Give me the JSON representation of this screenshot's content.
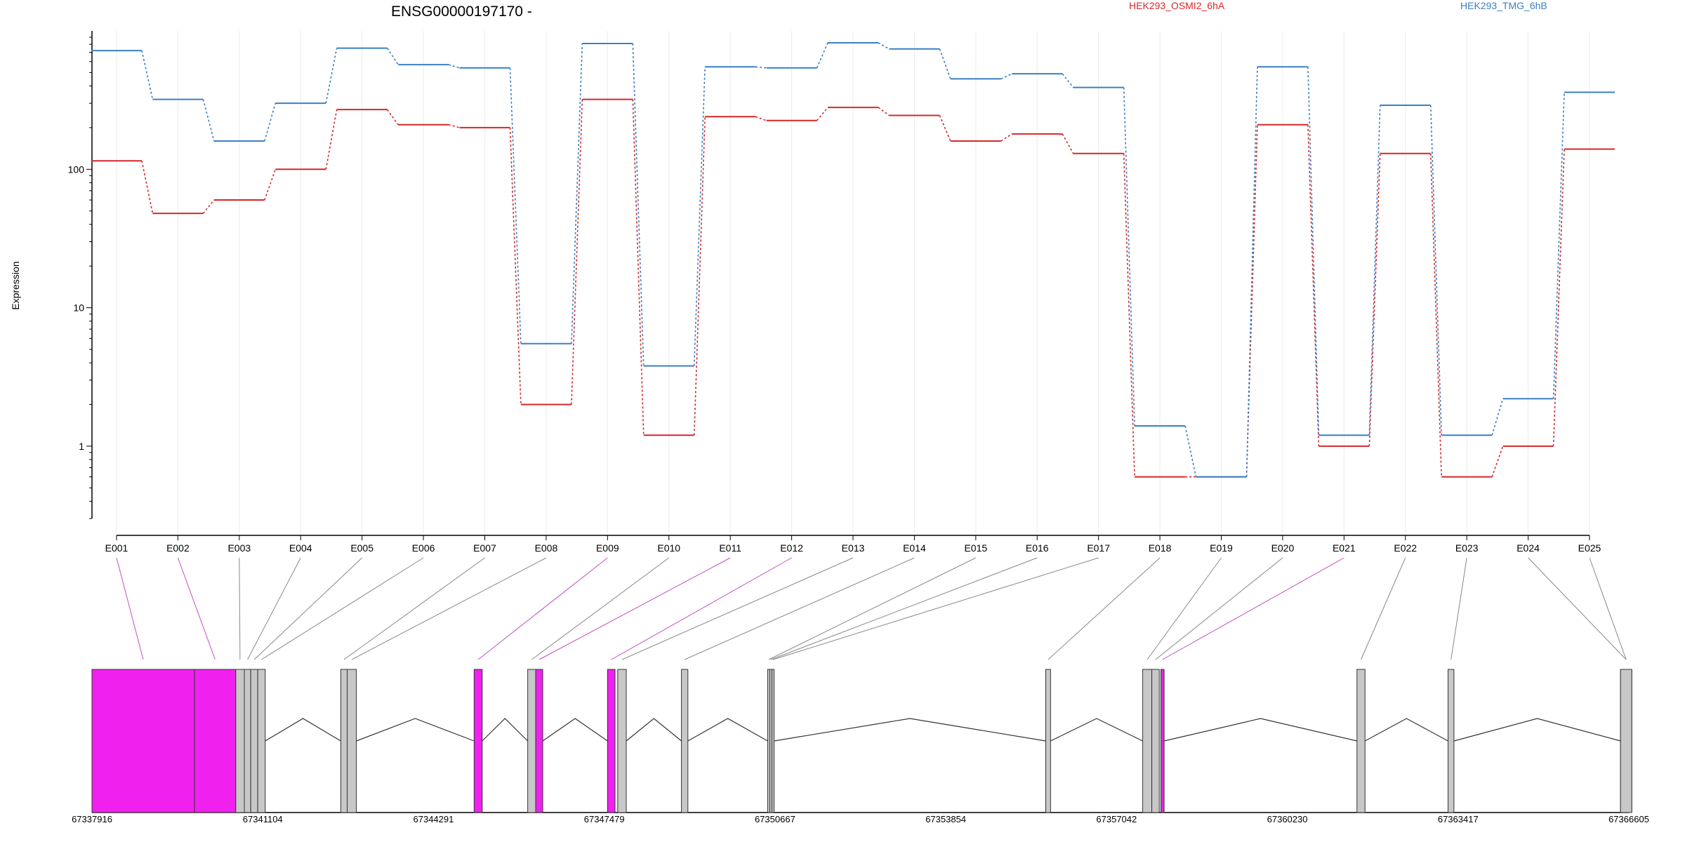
{
  "chart_data": {
    "type": "line",
    "title": "ENSG00000197170 -",
    "ylabel": "Expression",
    "xlabel": "",
    "yscale": "log",
    "ylim": [
      0.3,
      1000
    ],
    "yticks": [
      1,
      10,
      100
    ],
    "ytick_labels": [
      "1",
      "10",
      "100"
    ],
    "grid": "vertical",
    "legend_position": "top",
    "categories": [
      "E001",
      "E002",
      "E003",
      "E004",
      "E005",
      "E006",
      "E007",
      "E008",
      "E009",
      "E010",
      "E011",
      "E012",
      "E013",
      "E014",
      "E015",
      "E016",
      "E017",
      "E018",
      "E019",
      "E020",
      "E021",
      "E022",
      "E023",
      "E024",
      "E025"
    ],
    "series": [
      {
        "name": "HEK293_OSMI2_6hA",
        "color": "#d62728",
        "values": [
          115,
          48,
          60,
          100,
          270,
          210,
          200,
          2.0,
          320,
          1.2,
          240,
          225,
          280,
          245,
          160,
          180,
          130,
          0.6,
          0.6,
          210,
          1.0,
          130,
          0.6,
          1.0,
          140
        ]
      },
      {
        "name": "HEK293_TMG_6hB",
        "color": "#3b7fc4",
        "values": [
          720,
          320,
          160,
          300,
          750,
          570,
          540,
          5.5,
          810,
          3.8,
          550,
          540,
          820,
          740,
          450,
          490,
          390,
          1.4,
          0.6,
          550,
          1.2,
          290,
          1.2,
          2.2,
          360
        ]
      }
    ],
    "gene_model": {
      "coordinates": [
        "67337916",
        "67341104",
        "67344291",
        "67347479",
        "67350667",
        "67353854",
        "67357042",
        "67360230",
        "67363417",
        "67366605"
      ],
      "range": [
        67337916,
        67366605
      ],
      "highlight_color": "#f020ef",
      "base_color": "#c8c8c8",
      "exons": [
        {
          "id": "E001",
          "start": 67337916,
          "end": 67339830,
          "highlight": true
        },
        {
          "id": "E002",
          "start": 67339830,
          "end": 67340600,
          "highlight": true
        },
        {
          "id": "E003",
          "start": 67340600,
          "end": 67340760,
          "highlight": false
        },
        {
          "id": "E004",
          "start": 67340760,
          "end": 67340880,
          "highlight": false
        },
        {
          "id": "E005",
          "start": 67340880,
          "end": 67341010,
          "highlight": false
        },
        {
          "id": "E006",
          "start": 67341010,
          "end": 67341150,
          "highlight": false
        },
        {
          "id": "E007",
          "start": 67342560,
          "end": 67342680,
          "highlight": false
        },
        {
          "id": "E008",
          "start": 67342680,
          "end": 67342850,
          "highlight": false
        },
        {
          "id": "E009",
          "start": 67345050,
          "end": 67345200,
          "highlight": true
        },
        {
          "id": "E010",
          "start": 67346050,
          "end": 67346200,
          "highlight": false
        },
        {
          "id": "E011",
          "start": 67346200,
          "end": 67346330,
          "highlight": true
        },
        {
          "id": "E012",
          "start": 67347540,
          "end": 67347680,
          "highlight": true
        },
        {
          "id": "E013",
          "start": 67347730,
          "end": 67347890,
          "highlight": false
        },
        {
          "id": "E014",
          "start": 67348920,
          "end": 67349040,
          "highlight": false
        },
        {
          "id": "E015",
          "start": 67350530,
          "end": 67350570,
          "highlight": false
        },
        {
          "id": "E016",
          "start": 67350570,
          "end": 67350610,
          "highlight": false
        },
        {
          "id": "E017",
          "start": 67350610,
          "end": 67350650,
          "highlight": false
        },
        {
          "id": "E018",
          "start": 67355720,
          "end": 67355810,
          "highlight": false
        },
        {
          "id": "E019",
          "start": 67357530,
          "end": 67357700,
          "highlight": false
        },
        {
          "id": "E020",
          "start": 67357700,
          "end": 67357840,
          "highlight": false
        },
        {
          "id": "E021",
          "start": 67357870,
          "end": 67357930,
          "highlight": true
        },
        {
          "id": "E022",
          "start": 67361530,
          "end": 67361680,
          "highlight": false
        },
        {
          "id": "E023",
          "start": 67363230,
          "end": 67363340,
          "highlight": false
        },
        {
          "id": "E024",
          "start": 67366450,
          "end": 67366660,
          "highlight": false
        },
        {
          "id": "E025",
          "start": 67366450,
          "end": 67366660,
          "highlight": false
        }
      ]
    }
  }
}
